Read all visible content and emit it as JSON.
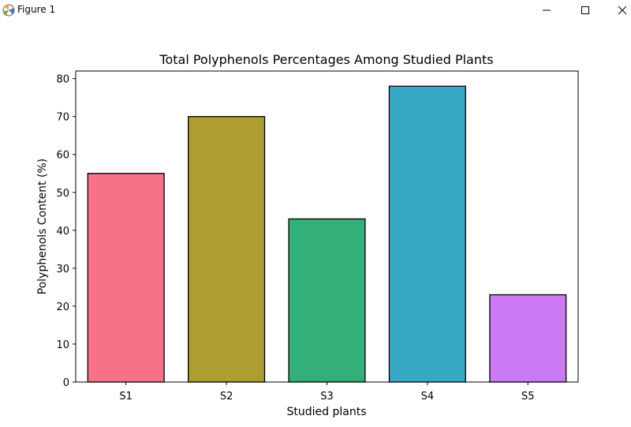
{
  "window": {
    "title": "Figure 1",
    "icon": "matplotlib-icon",
    "controls": [
      "minimize-icon",
      "maximize-icon",
      "close-icon"
    ]
  },
  "chart_data": {
    "type": "bar",
    "title": "Total Polyphenols Percentages Among Studied Plants",
    "xlabel": "Studied plants",
    "ylabel": "Polyphenols Content (%)",
    "categories": [
      "S1",
      "S2",
      "S3",
      "S4",
      "S5"
    ],
    "values": [
      55,
      70,
      43,
      78,
      23
    ],
    "colors": [
      "#f77189",
      "#ae9d31",
      "#33b07a",
      "#38a9c5",
      "#cc7af4"
    ],
    "edge_color": "#000000",
    "ylim": [
      0,
      82
    ],
    "yticks": [
      0,
      10,
      20,
      30,
      40,
      50,
      60,
      70,
      80
    ],
    "grid": false,
    "legend": "none"
  }
}
